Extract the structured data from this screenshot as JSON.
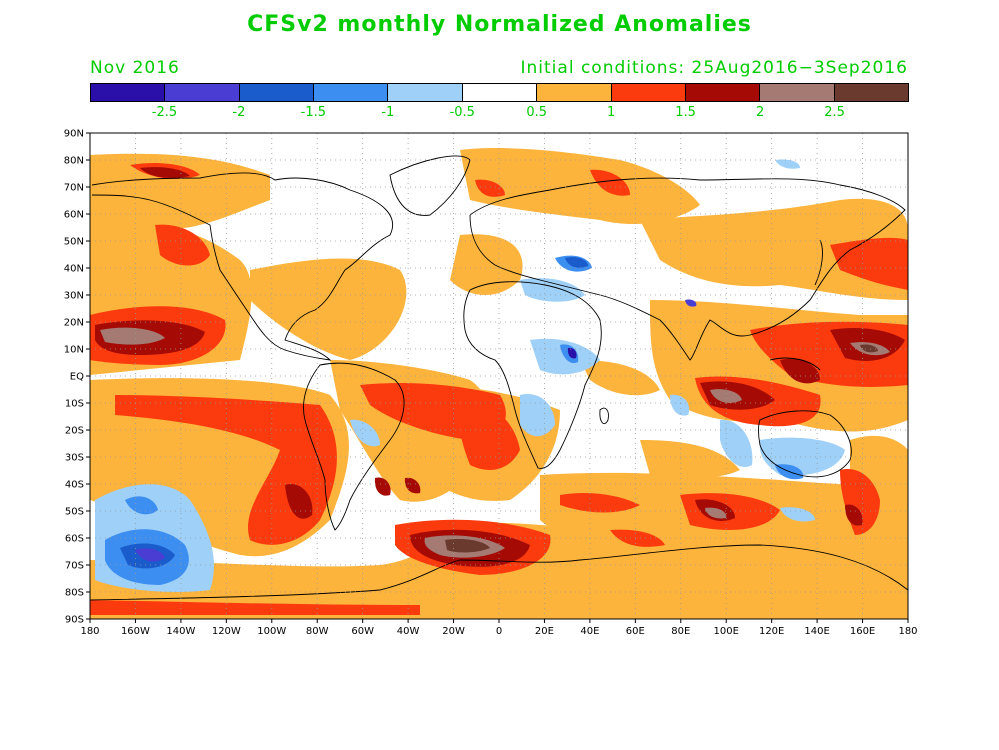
{
  "title": "CFSv2 monthly Normalized Anomalies",
  "month": "Nov 2016",
  "initial_conditions": "Initial conditions: 25Aug2016−3Sep2016",
  "text_color": "#00cc00",
  "colorbar": {
    "colors": [
      "#2a0fa8",
      "#4a3dd4",
      "#1a5ccc",
      "#3c8ef0",
      "#9fd0f8",
      "#ffffff",
      "#fdb43c",
      "#fb3b0e",
      "#a50a05",
      "#a57a72",
      "#6a3a2e"
    ],
    "labels": [
      "-2.5",
      "-2",
      "-1.5",
      "-1",
      "-0.5",
      "0.5",
      "1",
      "1.5",
      "2",
      "2.5"
    ]
  },
  "axes": {
    "lat_labels": [
      "90N",
      "80N",
      "70N",
      "60N",
      "50N",
      "40N",
      "30N",
      "20N",
      "10N",
      "EQ",
      "10S",
      "20S",
      "30S",
      "40S",
      "50S",
      "60S",
      "70S",
      "80S",
      "90S"
    ],
    "lon_labels": [
      "180",
      "160W",
      "140W",
      "120W",
      "100W",
      "80W",
      "60W",
      "40W",
      "20W",
      "0",
      "20E",
      "40E",
      "60E",
      "80E",
      "100E",
      "120E",
      "140E",
      "160E",
      "180"
    ]
  }
}
